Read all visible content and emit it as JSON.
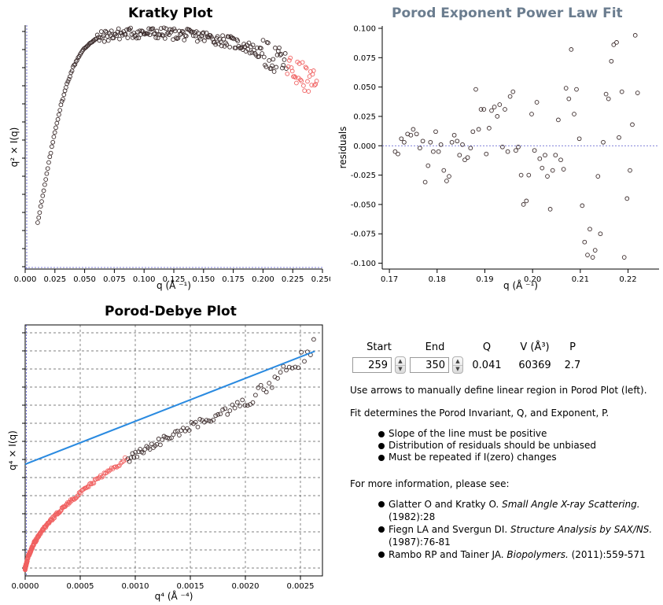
{
  "colors": {
    "normal_point": "#3a2a2a",
    "excluded_point": "#f06060",
    "fit_line": "#2a8ae0",
    "zero_line": "#5555cc",
    "grid": "#555555",
    "porod_title": "#6b7d8f"
  },
  "kratky": {
    "title": "Kratky Plot",
    "xlabel": "q (Å ⁻¹)",
    "ylabel": "q² × I(q)"
  },
  "porod_fit": {
    "title": "Porod Exponent Power Law Fit",
    "xlabel": "q (Å ⁻¹)",
    "ylabel": "residuals"
  },
  "porod_debye": {
    "title": "Porod-Debye Plot",
    "xlabel": "q⁴ (Å ⁻⁴)",
    "ylabel": "q⁴ × I(q)"
  },
  "controls": {
    "start_label": "Start",
    "end_label": "End",
    "q_label": "Q",
    "v_label": "V (Å³)",
    "p_label": "P",
    "start_value": "259",
    "end_value": "350",
    "q_value": "0.041",
    "v_value": "60369",
    "p_value": "2.7"
  },
  "info": {
    "line1": "Use arrows to manually define linear region in Porod Plot (left).",
    "line2": "Fit determines the Porod Invariant, Q, and Exponent, P.",
    "bullets": [
      "Slope of the line must be positive",
      "Distribution of residuals should be unbiased",
      "Must be repeated if I(zero) changes"
    ],
    "more_info": "For more information, please see:",
    "refs": [
      {
        "authors": "Glatter O and Kratky O. ",
        "title": "Small Angle X-ray Scattering.",
        "rest1": "",
        "rest2": "(1982):28"
      },
      {
        "authors": "Fiegn LA and Svergun DI. ",
        "title": "Structure Analysis by SAX/NS.",
        "rest1": "",
        "rest2": "(1987):76-81"
      },
      {
        "authors": "Rambo RP and Tainer JA. ",
        "title": "Biopolymers.",
        "rest1": " (2011):559-571",
        "rest2": ""
      }
    ]
  },
  "chart_data": [
    {
      "type": "scatter",
      "name": "kratky",
      "title": "Kratky Plot",
      "xlabel": "q (Å ⁻¹)",
      "ylabel": "q² × I(q)",
      "xlim": [
        0.0,
        0.25
      ],
      "xticks": [
        "0.000",
        "0.025",
        "0.050",
        "0.075",
        "0.100",
        "0.125",
        "0.150",
        "0.175",
        "0.200",
        "0.225",
        "0.250"
      ],
      "y_tick_labels_visible": false,
      "excluded_from_q": 0.22,
      "curve": [
        [
          0.01,
          0.17
        ],
        [
          0.015,
          0.3
        ],
        [
          0.02,
          0.44
        ],
        [
          0.025,
          0.57
        ],
        [
          0.03,
          0.68
        ],
        [
          0.035,
          0.77
        ],
        [
          0.04,
          0.84
        ],
        [
          0.045,
          0.89
        ],
        [
          0.05,
          0.925
        ],
        [
          0.055,
          0.95
        ],
        [
          0.06,
          0.965
        ],
        [
          0.065,
          0.975
        ],
        [
          0.075,
          0.985
        ],
        [
          0.09,
          0.99
        ],
        [
          0.11,
          0.99
        ],
        [
          0.13,
          0.985
        ],
        [
          0.15,
          0.975
        ],
        [
          0.17,
          0.955
        ],
        [
          0.185,
          0.935
        ],
        [
          0.2,
          0.9
        ],
        [
          0.215,
          0.87
        ],
        [
          0.225,
          0.83
        ],
        [
          0.235,
          0.8
        ],
        [
          0.245,
          0.76
        ]
      ]
    },
    {
      "type": "scatter",
      "name": "porod_residuals",
      "title": "Porod Exponent Power Law Fit",
      "xlabel": "q (Å ⁻¹)",
      "ylabel": "residuals",
      "xlim": [
        0.1685,
        0.2265
      ],
      "ylim": [
        -0.105,
        0.102
      ],
      "xticks": [
        "0.17",
        "0.18",
        "0.19",
        "0.20",
        "0.21",
        "0.22"
      ],
      "yticks": [
        "0.100",
        "0.075",
        "0.050",
        "0.025",
        "0.000",
        "-0.025",
        "-0.050",
        "-0.075",
        "-0.100"
      ],
      "points": [
        [
          0.1712,
          -0.005
        ],
        [
          0.1718,
          -0.007
        ],
        [
          0.1725,
          0.006
        ],
        [
          0.1731,
          0.003
        ],
        [
          0.1738,
          0.01
        ],
        [
          0.1745,
          0.009
        ],
        [
          0.175,
          0.014
        ],
        [
          0.1757,
          0.01
        ],
        [
          0.1764,
          -0.002
        ],
        [
          0.177,
          0.004
        ],
        [
          0.1775,
          -0.031
        ],
        [
          0.1781,
          -0.017
        ],
        [
          0.1786,
          0.003
        ],
        [
          0.1792,
          -0.005
        ],
        [
          0.1797,
          0.012
        ],
        [
          0.1803,
          -0.005
        ],
        [
          0.1808,
          0.001
        ],
        [
          0.1814,
          -0.021
        ],
        [
          0.182,
          -0.03
        ],
        [
          0.1825,
          -0.026
        ],
        [
          0.1831,
          0.003
        ],
        [
          0.1836,
          0.009
        ],
        [
          0.1842,
          0.004
        ],
        [
          0.1847,
          -0.008
        ],
        [
          0.1853,
          0.001
        ],
        [
          0.1858,
          -0.012
        ],
        [
          0.1864,
          -0.01
        ],
        [
          0.187,
          -0.002
        ],
        [
          0.1875,
          0.012
        ],
        [
          0.1881,
          0.048
        ],
        [
          0.1887,
          0.014
        ],
        [
          0.1892,
          0.031
        ],
        [
          0.1898,
          0.031
        ],
        [
          0.1903,
          -0.007
        ],
        [
          0.1909,
          0.015
        ],
        [
          0.1914,
          0.03
        ],
        [
          0.192,
          0.033
        ],
        [
          0.1926,
          0.025
        ],
        [
          0.1931,
          0.035
        ],
        [
          0.1937,
          -0.001
        ],
        [
          0.1942,
          0.031
        ],
        [
          0.1948,
          -0.005
        ],
        [
          0.1953,
          0.042
        ],
        [
          0.1959,
          0.046
        ],
        [
          0.1965,
          -0.004
        ],
        [
          0.197,
          -0.001
        ],
        [
          0.1976,
          -0.025
        ],
        [
          0.1981,
          -0.05
        ],
        [
          0.1987,
          -0.047
        ],
        [
          0.1992,
          -0.025
        ],
        [
          0.1998,
          0.027
        ],
        [
          0.2004,
          -0.004
        ],
        [
          0.2009,
          0.037
        ],
        [
          0.2015,
          -0.011
        ],
        [
          0.202,
          -0.019
        ],
        [
          0.2026,
          -0.008
        ],
        [
          0.2031,
          -0.026
        ],
        [
          0.2037,
          -0.054
        ],
        [
          0.2042,
          -0.021
        ],
        [
          0.2048,
          -0.008
        ],
        [
          0.2054,
          0.022
        ],
        [
          0.2059,
          -0.012
        ],
        [
          0.2065,
          -0.02
        ],
        [
          0.207,
          0.049
        ],
        [
          0.2076,
          0.04
        ],
        [
          0.2081,
          0.082
        ],
        [
          0.2087,
          0.027
        ],
        [
          0.2092,
          0.048
        ],
        [
          0.2098,
          0.006
        ],
        [
          0.2104,
          -0.051
        ],
        [
          0.2109,
          -0.082
        ],
        [
          0.2115,
          -0.093
        ],
        [
          0.212,
          -0.071
        ],
        [
          0.2126,
          -0.095
        ],
        [
          0.2131,
          -0.089
        ],
        [
          0.2137,
          -0.026
        ],
        [
          0.2142,
          -0.075
        ],
        [
          0.2148,
          0.003
        ],
        [
          0.2154,
          0.044
        ],
        [
          0.2159,
          0.04
        ],
        [
          0.2165,
          0.072
        ],
        [
          0.217,
          0.086
        ],
        [
          0.2176,
          0.088
        ],
        [
          0.2181,
          0.007
        ],
        [
          0.2187,
          0.046
        ],
        [
          0.2192,
          -0.095
        ],
        [
          0.2198,
          -0.045
        ],
        [
          0.2204,
          -0.021
        ],
        [
          0.2209,
          0.018
        ],
        [
          0.2215,
          0.094
        ],
        [
          0.222,
          0.045
        ]
      ]
    },
    {
      "type": "scatter",
      "name": "porod_debye",
      "title": "Porod-Debye Plot",
      "xlabel": "q⁴ (Å ⁻⁴)",
      "ylabel": "q⁴ × I(q)",
      "xlim": [
        0.0,
        0.0027
      ],
      "xticks": [
        "0.0000",
        "0.0005",
        "0.0010",
        "0.0015",
        "0.0020",
        "0.0025"
      ],
      "y_tick_labels_visible": false,
      "fit_line": {
        "x": [
          0.0,
          0.00263
        ],
        "y": [
          0.445,
          0.895
        ]
      },
      "red_until_q4": 0.00093,
      "curve": [
        [
          0.0,
          0.03
        ],
        [
          3e-05,
          0.08
        ],
        [
          8e-05,
          0.13
        ],
        [
          0.00015,
          0.18
        ],
        [
          0.00025,
          0.23
        ],
        [
          0.00035,
          0.275
        ],
        [
          0.0005,
          0.33
        ],
        [
          0.00065,
          0.385
        ],
        [
          0.0008,
          0.43
        ],
        [
          0.00095,
          0.47
        ],
        [
          0.0011,
          0.51
        ],
        [
          0.0013,
          0.55
        ],
        [
          0.0015,
          0.595
        ],
        [
          0.0017,
          0.63
        ],
        [
          0.0019,
          0.67
        ],
        [
          0.0021,
          0.72
        ],
        [
          0.0023,
          0.79
        ],
        [
          0.0025,
          0.86
        ],
        [
          0.00262,
          0.92
        ]
      ]
    }
  ]
}
